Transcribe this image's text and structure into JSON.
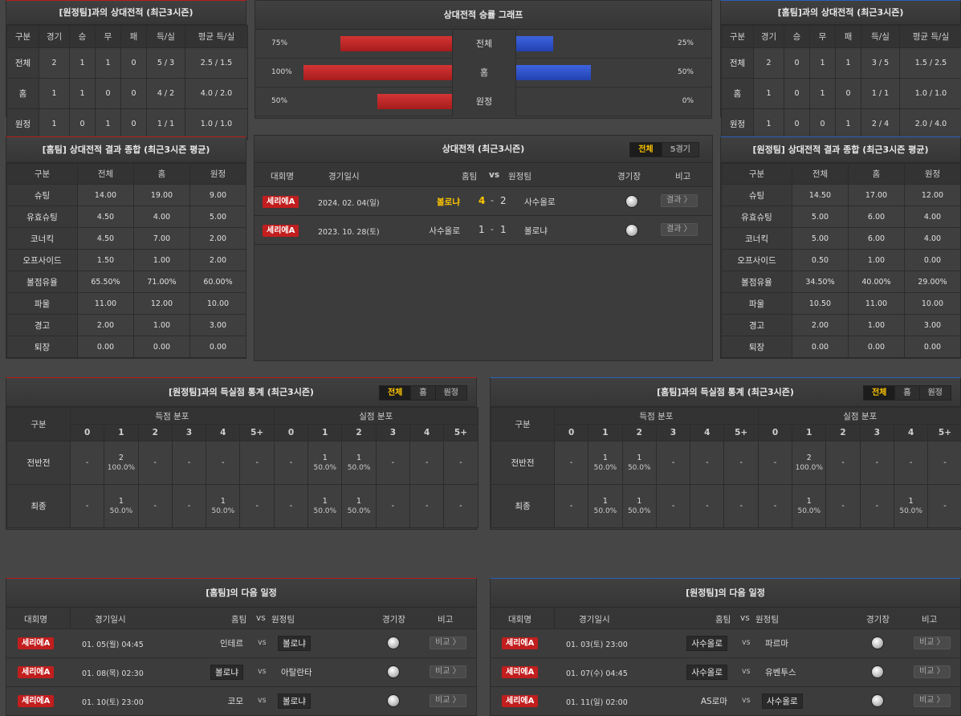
{
  "h2h_away": {
    "title": "[원정팀]과의 상대전적 (최근3시즌)",
    "headers": [
      "구분",
      "경기",
      "승",
      "무",
      "패",
      "득/실",
      "평균 득/실"
    ],
    "rows": [
      [
        "전체",
        "2",
        "1",
        "1",
        "0",
        "5 / 3",
        "2.5 / 1.5"
      ],
      [
        "홈",
        "1",
        "1",
        "0",
        "0",
        "4 / 2",
        "4.0 / 2.0"
      ],
      [
        "원정",
        "1",
        "0",
        "1",
        "0",
        "1 / 1",
        "1.0 / 1.0"
      ]
    ]
  },
  "graph": {
    "title": "상대전적 승률 그래프",
    "rows": [
      {
        "label": "전체",
        "left": "75%",
        "right": "25%",
        "left_value": 75,
        "right_value": 25
      },
      {
        "label": "홈",
        "left": "100%",
        "right": "50%",
        "left_value": 100,
        "right_value": 50
      },
      {
        "label": "원정",
        "left": "50%",
        "right": "0%",
        "left_value": 50,
        "right_value": 0
      }
    ]
  },
  "h2h_home": {
    "title": "[홈팀]과의 상대전적 (최근3시즌)",
    "headers": [
      "구분",
      "경기",
      "승",
      "무",
      "패",
      "득/실",
      "평균 득/실"
    ],
    "rows": [
      [
        "전체",
        "2",
        "0",
        "1",
        "1",
        "3 / 5",
        "1.5 / 2.5"
      ],
      [
        "홈",
        "1",
        "0",
        "1",
        "0",
        "1 / 1",
        "1.0 / 1.0"
      ],
      [
        "원정",
        "1",
        "0",
        "0",
        "1",
        "2 / 4",
        "2.0 / 4.0"
      ]
    ]
  },
  "summary_home": {
    "title": "[홈팀] 상대전적 결과 종합 (최근3시즌 평균)",
    "headers": [
      "구분",
      "전체",
      "홈",
      "원정"
    ],
    "rows": [
      [
        "슈팅",
        "14.00",
        "19.00",
        "9.00"
      ],
      [
        "유효슈팅",
        "4.50",
        "4.00",
        "5.00"
      ],
      [
        "코너킥",
        "4.50",
        "7.00",
        "2.00"
      ],
      [
        "오프사이드",
        "1.50",
        "1.00",
        "2.00"
      ],
      [
        "볼점유율",
        "65.50%",
        "71.00%",
        "60.00%"
      ],
      [
        "파울",
        "11.00",
        "12.00",
        "10.00"
      ],
      [
        "경고",
        "2.00",
        "1.00",
        "3.00"
      ],
      [
        "퇴장",
        "0.00",
        "0.00",
        "0.00"
      ]
    ]
  },
  "summary_away": {
    "title": "[원정팀] 상대전적 결과 종합 (최근3시즌 평균)",
    "headers": [
      "구분",
      "전체",
      "홈",
      "원정"
    ],
    "rows": [
      [
        "슈팅",
        "14.50",
        "17.00",
        "12.00"
      ],
      [
        "유효슈팅",
        "5.00",
        "6.00",
        "4.00"
      ],
      [
        "코너킥",
        "5.00",
        "6.00",
        "4.00"
      ],
      [
        "오프사이드",
        "0.50",
        "1.00",
        "0.00"
      ],
      [
        "볼점유율",
        "34.50%",
        "40.00%",
        "29.00%"
      ],
      [
        "파울",
        "10.50",
        "11.00",
        "10.00"
      ],
      [
        "경고",
        "2.00",
        "1.00",
        "3.00"
      ],
      [
        "퇴장",
        "0.00",
        "0.00",
        "0.00"
      ]
    ]
  },
  "h2h_list": {
    "title": "상대전적 (최근3시즌)",
    "tabs": [
      "전체",
      "5경기"
    ],
    "headers": {
      "league": "대회명",
      "date": "경기일시",
      "home": "홈팀",
      "vs": "vs",
      "away": "원정팀",
      "venue": "경기장",
      "note": "비고"
    },
    "matches": [
      {
        "league": "세리에A",
        "date": "2024. 02. 04(일)",
        "home": "볼로냐",
        "score_home": "4",
        "dash": "-",
        "score_away": "2",
        "away": "사수올로",
        "btn": "결과 〉",
        "home_highlight": true
      },
      {
        "league": "세리에A",
        "date": "2023. 10. 28(토)",
        "home": "사수올로",
        "score_home": "1",
        "dash": "-",
        "score_away": "1",
        "away": "볼로냐",
        "btn": "결과 〉",
        "home_highlight": false
      }
    ]
  },
  "goals_left": {
    "title": "[원정팀]과의 득실점 통계 (최근3시즌)",
    "tabs": [
      "전체",
      "홈",
      "원정"
    ],
    "group_label": "구분",
    "scored_label": "득점 분포",
    "conceded_label": "실점 분포",
    "cols": [
      "0",
      "1",
      "2",
      "3",
      "4",
      "5+"
    ],
    "rows": [
      {
        "label": "전반전",
        "cells": [
          [
            "-",
            ""
          ],
          [
            "2",
            "100.0%"
          ],
          [
            "-",
            ""
          ],
          [
            "-",
            ""
          ],
          [
            "-",
            ""
          ],
          [
            "-",
            ""
          ],
          [
            "-",
            ""
          ],
          [
            "1",
            "50.0%"
          ],
          [
            "1",
            "50.0%"
          ],
          [
            "-",
            ""
          ],
          [
            "-",
            ""
          ],
          [
            "-",
            ""
          ]
        ]
      },
      {
        "label": "최종",
        "cells": [
          [
            "-",
            ""
          ],
          [
            "1",
            "50.0%"
          ],
          [
            "-",
            ""
          ],
          [
            "-",
            ""
          ],
          [
            "1",
            "50.0%"
          ],
          [
            "-",
            ""
          ],
          [
            "-",
            ""
          ],
          [
            "1",
            "50.0%"
          ],
          [
            "1",
            "50.0%"
          ],
          [
            "-",
            ""
          ],
          [
            "-",
            ""
          ],
          [
            "-",
            ""
          ]
        ]
      }
    ]
  },
  "goals_right": {
    "title": "[홈팀]과의 득실점 통계 (최근3시즌)",
    "tabs": [
      "전체",
      "홈",
      "원정"
    ],
    "group_label": "구분",
    "scored_label": "득점 분포",
    "conceded_label": "실점 분포",
    "cols": [
      "0",
      "1",
      "2",
      "3",
      "4",
      "5+"
    ],
    "rows": [
      {
        "label": "전반전",
        "cells": [
          [
            "-",
            ""
          ],
          [
            "1",
            "50.0%"
          ],
          [
            "1",
            "50.0%"
          ],
          [
            "-",
            ""
          ],
          [
            "-",
            ""
          ],
          [
            "-",
            ""
          ],
          [
            "-",
            ""
          ],
          [
            "2",
            "100.0%"
          ],
          [
            "-",
            ""
          ],
          [
            "-",
            ""
          ],
          [
            "-",
            ""
          ],
          [
            "-",
            ""
          ]
        ]
      },
      {
        "label": "최종",
        "cells": [
          [
            "-",
            ""
          ],
          [
            "1",
            "50.0%"
          ],
          [
            "1",
            "50.0%"
          ],
          [
            "-",
            ""
          ],
          [
            "-",
            ""
          ],
          [
            "-",
            ""
          ],
          [
            "-",
            ""
          ],
          [
            "1",
            "50.0%"
          ],
          [
            "-",
            ""
          ],
          [
            "-",
            ""
          ],
          [
            "1",
            "50.0%"
          ],
          [
            "-",
            ""
          ]
        ]
      }
    ]
  },
  "next_home": {
    "title": "[홈팀]의 다음 일정",
    "headers": {
      "league": "대회명",
      "date": "경기일시",
      "home": "홈팀",
      "vs": "vs",
      "away": "원정팀",
      "venue": "경기장",
      "note": "비고"
    },
    "matches": [
      {
        "league": "세리에A",
        "date": "01. 05(월) 04:45",
        "home": "인테르",
        "vs": "vs",
        "away": "볼로냐",
        "boxed": "away",
        "btn": "비교 〉"
      },
      {
        "league": "세리에A",
        "date": "01. 08(목) 02:30",
        "home": "볼로냐",
        "vs": "vs",
        "away": "아탈란타",
        "boxed": "home",
        "btn": "비교 〉"
      },
      {
        "league": "세리에A",
        "date": "01. 10(토) 23:00",
        "home": "코모",
        "vs": "vs",
        "away": "볼로냐",
        "boxed": "away",
        "btn": "비교 〉"
      }
    ]
  },
  "next_away": {
    "title": "[원정팀]의 다음 일정",
    "headers": {
      "league": "대회명",
      "date": "경기일시",
      "home": "홈팀",
      "vs": "vs",
      "away": "원정팀",
      "venue": "경기장",
      "note": "비고"
    },
    "matches": [
      {
        "league": "세리에A",
        "date": "01. 03(토) 23:00",
        "home": "사수올로",
        "vs": "vs",
        "away": "파르마",
        "boxed": "home",
        "btn": "비교 〉"
      },
      {
        "league": "세리에A",
        "date": "01. 07(수) 04:45",
        "home": "사수올로",
        "vs": "vs",
        "away": "유벤투스",
        "boxed": "home",
        "btn": "비교 〉"
      },
      {
        "league": "세리에A",
        "date": "01. 11(일) 02:00",
        "home": "AS로마",
        "vs": "vs",
        "away": "사수올로",
        "boxed": "away",
        "btn": "비교 〉"
      }
    ]
  },
  "colors": {
    "win_bar": "#c42424",
    "loss_bar": "#2e50c8",
    "accent": "#ffc600",
    "league_badge": "#c21e1e"
  },
  "icons": {
    "venue": "soccer-ball-icon"
  }
}
